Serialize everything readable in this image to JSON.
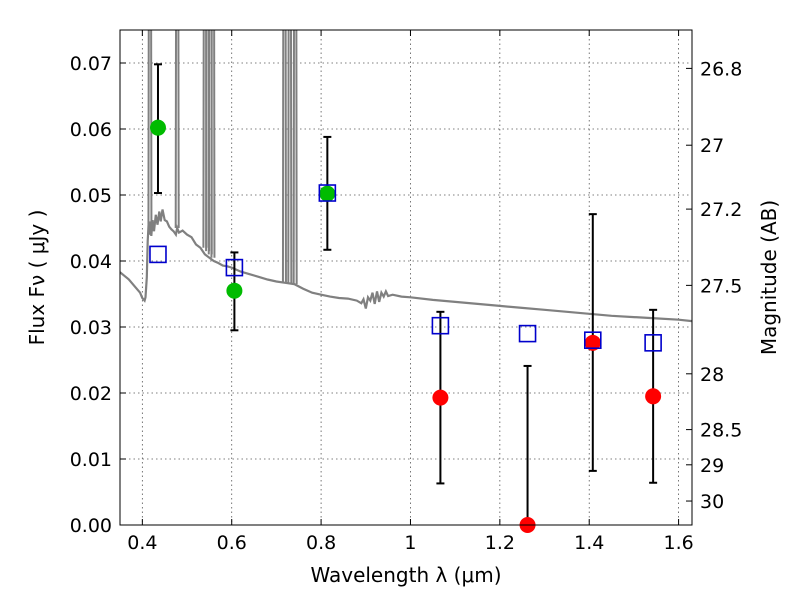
{
  "chart_data": {
    "type": "scatter",
    "title": "",
    "xlabel": "Wavelength  λ (μm)",
    "ylabel": "Flux  Fν  ( μJy )",
    "y2label": "Magnitude (AB)",
    "xlim": [
      0.35,
      1.63
    ],
    "ylim": [
      0.0,
      0.075
    ],
    "grid": true,
    "x_ticks": [
      0.4,
      0.6,
      0.8,
      1.0,
      1.2,
      1.4,
      1.6
    ],
    "x_tick_labels": [
      "0.4",
      "0.6",
      "0.8",
      "1",
      "1.2",
      "1.4",
      "1.6"
    ],
    "y_ticks": [
      0.0,
      0.01,
      0.02,
      0.03,
      0.04,
      0.05,
      0.06,
      0.07
    ],
    "y_tick_labels": [
      "0.00",
      "0.01",
      "0.02",
      "0.03",
      "0.04",
      "0.05",
      "0.06",
      "0.07"
    ],
    "y2_ticks": [
      26.8,
      27,
      27.2,
      27.5,
      28,
      28.5,
      29,
      30
    ],
    "y2_tick_labels": [
      "26.8",
      "27",
      "27.2",
      "27.5",
      "28",
      "28.5",
      "29",
      "30"
    ],
    "colors": {
      "green": "#00bb00",
      "red": "#ff0000",
      "blue": "#0000cc",
      "sed": "#808080",
      "errorbar": "#000000"
    },
    "series": [
      {
        "marker": "green-circle",
        "points": [
          {
            "x": 0.435,
            "y": 0.0602,
            "yerr": [
              0.0503,
              0.0698
            ]
          },
          {
            "x": 0.606,
            "y": 0.0355,
            "yerr": [
              0.0295,
              0.0413
            ]
          },
          {
            "x": 0.814,
            "y": 0.0502,
            "yerr": [
              0.0417,
              0.0588
            ]
          }
        ]
      },
      {
        "marker": "red-circle",
        "points": [
          {
            "x": 1.067,
            "y": 0.0193,
            "yerr": [
              0.0063,
              0.0323
            ]
          },
          {
            "x": 1.262,
            "y": 0.0,
            "yerr": [
              0.0,
              0.0241
            ]
          },
          {
            "x": 1.408,
            "y": 0.0276,
            "yerr": [
              0.0082,
              0.0471
            ]
          },
          {
            "x": 1.543,
            "y": 0.0195,
            "yerr": [
              0.0064,
              0.0326
            ]
          }
        ]
      },
      {
        "marker": "blue-open-square",
        "points": [
          {
            "x": 0.435,
            "y": 0.041
          },
          {
            "x": 0.606,
            "y": 0.039
          },
          {
            "x": 0.814,
            "y": 0.0503
          },
          {
            "x": 1.067,
            "y": 0.0302
          },
          {
            "x": 1.262,
            "y": 0.029
          },
          {
            "x": 1.408,
            "y": 0.028
          },
          {
            "x": 1.543,
            "y": 0.0276
          }
        ]
      }
    ],
    "sed_curve": {
      "type": "line",
      "points": [
        [
          0.35,
          0.0383
        ],
        [
          0.37,
          0.0372
        ],
        [
          0.385,
          0.036
        ],
        [
          0.395,
          0.0352
        ],
        [
          0.4,
          0.0344
        ],
        [
          0.405,
          0.034
        ],
        [
          0.407,
          0.0345
        ],
        [
          0.41,
          0.0375
        ],
        [
          0.412,
          0.043
        ],
        [
          0.414,
          0.0455
        ],
        [
          0.416,
          0.044
        ],
        [
          0.418,
          0.046
        ],
        [
          0.42,
          0.0438
        ],
        [
          0.423,
          0.0462
        ],
        [
          0.426,
          0.0445
        ],
        [
          0.43,
          0.047
        ],
        [
          0.434,
          0.0455
        ],
        [
          0.438,
          0.0475
        ],
        [
          0.441,
          0.046
        ],
        [
          0.445,
          0.0478
        ],
        [
          0.45,
          0.0462
        ],
        [
          0.455,
          0.046
        ],
        [
          0.46,
          0.0452
        ],
        [
          0.465,
          0.0448
        ],
        [
          0.47,
          0.0445
        ],
        [
          0.475,
          0.044
        ],
        [
          0.478,
          0.045
        ],
        [
          0.482,
          0.0443
        ],
        [
          0.49,
          0.0446
        ],
        [
          0.5,
          0.044
        ],
        [
          0.51,
          0.0436
        ],
        [
          0.52,
          0.0425
        ],
        [
          0.53,
          0.042
        ],
        [
          0.54,
          0.041
        ],
        [
          0.55,
          0.0405
        ],
        [
          0.56,
          0.04
        ],
        [
          0.57,
          0.0397
        ],
        [
          0.58,
          0.0393
        ],
        [
          0.59,
          0.0392
        ],
        [
          0.6,
          0.039
        ],
        [
          0.62,
          0.0384
        ],
        [
          0.64,
          0.038
        ],
        [
          0.66,
          0.0376
        ],
        [
          0.68,
          0.0372
        ],
        [
          0.7,
          0.0369
        ],
        [
          0.72,
          0.0367
        ],
        [
          0.74,
          0.0365
        ],
        [
          0.76,
          0.0358
        ],
        [
          0.78,
          0.0352
        ],
        [
          0.8,
          0.0349
        ],
        [
          0.82,
          0.0346
        ],
        [
          0.84,
          0.0344
        ],
        [
          0.86,
          0.0343
        ],
        [
          0.88,
          0.034
        ],
        [
          0.89,
          0.0336
        ],
        [
          0.895,
          0.0342
        ],
        [
          0.9,
          0.0328
        ],
        [
          0.905,
          0.0345
        ],
        [
          0.91,
          0.034
        ],
        [
          0.915,
          0.0352
        ],
        [
          0.92,
          0.0335
        ],
        [
          0.925,
          0.0354
        ],
        [
          0.93,
          0.0338
        ],
        [
          0.935,
          0.0352
        ],
        [
          0.94,
          0.0346
        ],
        [
          0.945,
          0.0354
        ],
        [
          0.95,
          0.0347
        ],
        [
          0.96,
          0.0349
        ],
        [
          0.98,
          0.0346
        ],
        [
          1.0,
          0.0345
        ],
        [
          1.05,
          0.0341
        ],
        [
          1.1,
          0.0338
        ],
        [
          1.15,
          0.0335
        ],
        [
          1.2,
          0.0332
        ],
        [
          1.25,
          0.0329
        ],
        [
          1.3,
          0.0326
        ],
        [
          1.35,
          0.0323
        ],
        [
          1.4,
          0.032
        ],
        [
          1.45,
          0.0317
        ],
        [
          1.5,
          0.0315
        ],
        [
          1.55,
          0.0313
        ],
        [
          1.6,
          0.0311
        ],
        [
          1.63,
          0.0309
        ]
      ],
      "spikes": [
        {
          "x": 0.417,
          "from": 0.044,
          "to": 0.075
        },
        {
          "x": 0.478,
          "from": 0.045,
          "to": 0.075
        },
        {
          "x": 0.54,
          "from": 0.042,
          "to": 0.075
        },
        {
          "x": 0.546,
          "from": 0.0415,
          "to": 0.075
        },
        {
          "x": 0.552,
          "from": 0.041,
          "to": 0.075
        },
        {
          "x": 0.558,
          "from": 0.0405,
          "to": 0.075
        },
        {
          "x": 0.718,
          "from": 0.0367,
          "to": 0.075
        },
        {
          "x": 0.73,
          "from": 0.0366,
          "to": 0.075
        },
        {
          "x": 0.742,
          "from": 0.0365,
          "to": 0.075
        }
      ]
    }
  }
}
